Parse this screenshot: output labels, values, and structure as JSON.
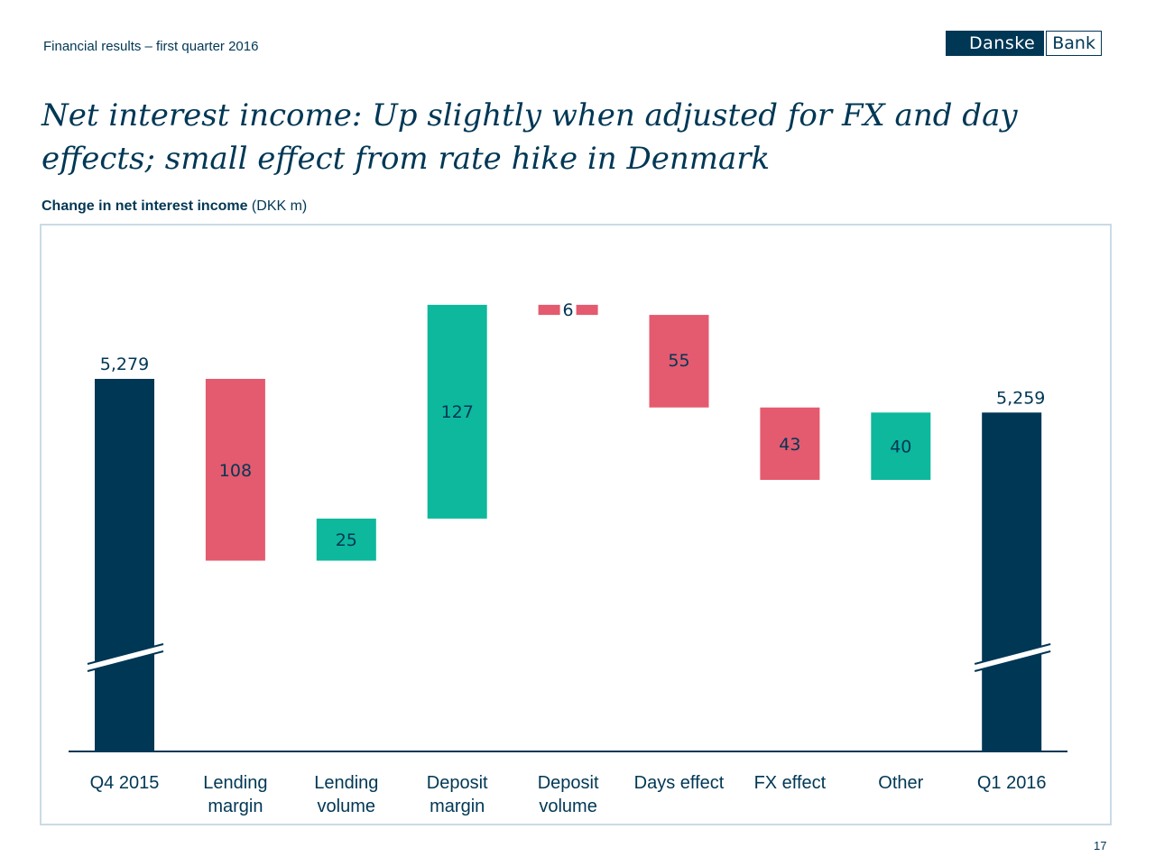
{
  "header": {
    "label": "Financial results – first quarter 2016"
  },
  "logo": {
    "left_text": "Danske",
    "right_text": "Bank"
  },
  "title": "Net interest income: Up slightly when adjusted for FX and day effects; small effect from rate hike in Denmark",
  "subtitle": {
    "bold": "Change in net interest income",
    "unit": " (DKK m)"
  },
  "page_number": "17",
  "colors": {
    "total": "#003755",
    "positive": "#0db89c",
    "negative": "#e45a6f",
    "axis": "#003755",
    "frame": "#c9dbe6"
  },
  "chart_data": {
    "type": "waterfall",
    "unit": "DKK m",
    "axis_break": true,
    "categories": [
      [
        "Q4 2015"
      ],
      [
        "Lending",
        "margin"
      ],
      [
        "Lending",
        "volume"
      ],
      [
        "Deposit",
        "margin"
      ],
      [
        "Deposit",
        "volume"
      ],
      [
        "Days effect"
      ],
      [
        "FX effect"
      ],
      [
        "Other"
      ],
      [
        "Q1 2016"
      ]
    ],
    "steps": [
      {
        "kind": "total",
        "value": 5279,
        "label": "5,279"
      },
      {
        "kind": "negative",
        "value": 108,
        "label": "108"
      },
      {
        "kind": "positive",
        "value": 25,
        "label": "25"
      },
      {
        "kind": "positive",
        "value": 127,
        "label": "127"
      },
      {
        "kind": "negative",
        "value": 6,
        "label": "6"
      },
      {
        "kind": "negative",
        "value": 55,
        "label": "55"
      },
      {
        "kind": "negative",
        "value": 43,
        "label": "43"
      },
      {
        "kind": "positive",
        "value": 40,
        "label": "40"
      },
      {
        "kind": "total",
        "value": 5259,
        "label": "5,259"
      }
    ]
  }
}
